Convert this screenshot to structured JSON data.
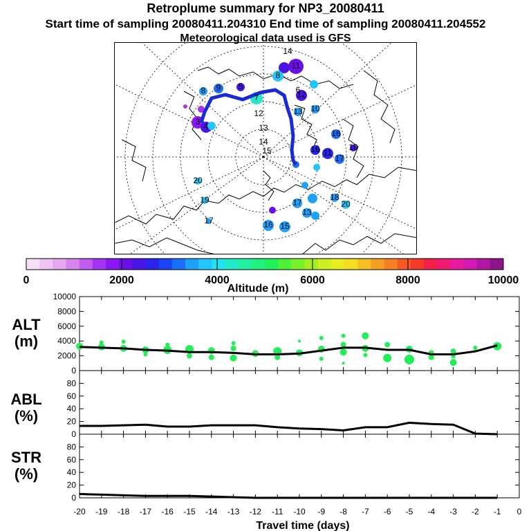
{
  "header": {
    "title": "Retroplume summary for NP3_20080411",
    "sampling_line": "Start time of sampling 20080411.204310     End time of sampling 20080411.204552",
    "met_line": "Meteorological data used is GFS"
  },
  "colors": {
    "track": "#1a2bd6",
    "alt_points": "#22ee55",
    "line": "#000000"
  },
  "colorbar": {
    "label": "Altitude (m)",
    "ticks": [
      "0",
      "2000",
      "4000",
      "6000",
      "8000",
      "10000"
    ],
    "colors": [
      "#f6e0f6",
      "#efc4f4",
      "#e6a6f0",
      "#d683ee",
      "#c25cf0",
      "#a633f2",
      "#8a18f0",
      "#6a10e6",
      "#4a14e6",
      "#2a24ee",
      "#1a44f4",
      "#1a70fa",
      "#1ea0fc",
      "#22c6fc",
      "#22e2ee",
      "#22ecc8",
      "#22eea2",
      "#22f080",
      "#22f25a",
      "#4cf23a",
      "#7af02a",
      "#a6ee22",
      "#ccee22",
      "#eaec22",
      "#f6dc22",
      "#f6c022",
      "#f6a022",
      "#f68022",
      "#f65a22",
      "#f63a2a",
      "#f2204a",
      "#f01c74",
      "#ea1aa0",
      "#d418b4",
      "#b018a4",
      "#8a1488"
    ]
  },
  "map_labels": [
    "14",
    "13",
    "14",
    "12",
    "15",
    "8",
    "11",
    "12",
    "7",
    "6",
    "11",
    "13",
    "10",
    "17",
    "16",
    "19",
    "16",
    "13",
    "20",
    "20",
    "19",
    "17",
    "16",
    "15",
    "17",
    "9",
    "8",
    "5",
    "4",
    "3",
    "18"
  ],
  "chart_data": [
    {
      "type": "scatter",
      "panel": "ALT",
      "ylabel": "ALT",
      "yunit": "(m)",
      "ylim": [
        0,
        10000
      ],
      "yticks": [
        "10000",
        "8000",
        "6000",
        "4000",
        "2000",
        "0"
      ],
      "x": [
        -20,
        -19,
        -18,
        -17,
        -16,
        -15,
        -14,
        -13,
        -12,
        -11,
        -10,
        -9,
        -8,
        -7,
        -6,
        -5,
        -4,
        -3,
        -2,
        -1
      ],
      "mean_altitude": [
        3200,
        3100,
        3000,
        2800,
        2700,
        2500,
        2500,
        2400,
        2200,
        2200,
        2300,
        2700,
        3100,
        3100,
        2800,
        2800,
        2200,
        2200,
        2600,
        3400
      ],
      "points": [
        {
          "x": -20,
          "y": 3300,
          "s": 5
        },
        {
          "x": -19,
          "y": 3200,
          "s": 5
        },
        {
          "x": -19,
          "y": 3800,
          "s": 3
        },
        {
          "x": -18,
          "y": 3000,
          "s": 5
        },
        {
          "x": -18,
          "y": 3900,
          "s": 3
        },
        {
          "x": -17,
          "y": 2800,
          "s": 5
        },
        {
          "x": -17,
          "y": 2200,
          "s": 3
        },
        {
          "x": -16,
          "y": 2800,
          "s": 6
        },
        {
          "x": -16,
          "y": 3500,
          "s": 3
        },
        {
          "x": -15,
          "y": 2900,
          "s": 6
        },
        {
          "x": -15,
          "y": 2000,
          "s": 4
        },
        {
          "x": -14,
          "y": 2700,
          "s": 5
        },
        {
          "x": -14,
          "y": 1800,
          "s": 4
        },
        {
          "x": -13,
          "y": 3000,
          "s": 4
        },
        {
          "x": -13,
          "y": 1700,
          "s": 5
        },
        {
          "x": -13,
          "y": 3700,
          "s": 3
        },
        {
          "x": -12,
          "y": 2300,
          "s": 5
        },
        {
          "x": -11,
          "y": 2600,
          "s": 6
        },
        {
          "x": -11,
          "y": 1800,
          "s": 4
        },
        {
          "x": -10,
          "y": 2400,
          "s": 5
        },
        {
          "x": -10,
          "y": 4000,
          "s": 2
        },
        {
          "x": -9,
          "y": 2900,
          "s": 5
        },
        {
          "x": -9,
          "y": 4400,
          "s": 3
        },
        {
          "x": -9,
          "y": 1600,
          "s": 3
        },
        {
          "x": -8,
          "y": 3500,
          "s": 4
        },
        {
          "x": -8,
          "y": 2500,
          "s": 5
        },
        {
          "x": -8,
          "y": 4700,
          "s": 3
        },
        {
          "x": -8,
          "y": 1000,
          "s": 2
        },
        {
          "x": -7,
          "y": 4700,
          "s": 5
        },
        {
          "x": -7,
          "y": 3000,
          "s": 5
        },
        {
          "x": -7,
          "y": 2100,
          "s": 3
        },
        {
          "x": -6,
          "y": 3500,
          "s": 4
        },
        {
          "x": -6,
          "y": 1700,
          "s": 6
        },
        {
          "x": -5,
          "y": 2900,
          "s": 5
        },
        {
          "x": -5,
          "y": 1500,
          "s": 7
        },
        {
          "x": -4,
          "y": 2400,
          "s": 4
        },
        {
          "x": -4,
          "y": 1800,
          "s": 4
        },
        {
          "x": -3,
          "y": 2600,
          "s": 4
        },
        {
          "x": -3,
          "y": 1100,
          "s": 5
        },
        {
          "x": -3,
          "y": 1900,
          "s": 3
        },
        {
          "x": -2,
          "y": 3100,
          "s": 3
        },
        {
          "x": -2,
          "y": 2700,
          "s": 2
        },
        {
          "x": -1,
          "y": 3300,
          "s": 6
        }
      ]
    },
    {
      "type": "line",
      "panel": "ABL",
      "ylabel": "ABL",
      "yunit": "(%)",
      "ylim": [
        0,
        100
      ],
      "yticks": [
        "80",
        "60",
        "40",
        "20",
        "0"
      ],
      "x": [
        -20,
        -19,
        -18,
        -17,
        -16,
        -15,
        -14,
        -13,
        -12,
        -11,
        -10,
        -9,
        -8,
        -7,
        -6,
        -5,
        -4,
        -3,
        -2,
        -1
      ],
      "values": [
        13,
        13,
        14,
        15,
        12,
        12,
        14,
        14,
        14,
        11,
        9,
        8,
        6,
        11,
        11,
        18,
        16,
        15,
        1,
        0
      ]
    },
    {
      "type": "line",
      "panel": "STR",
      "ylabel": "STR",
      "yunit": "(%)",
      "ylim": [
        0,
        100
      ],
      "yticks": [
        "80",
        "60",
        "40",
        "20",
        "0"
      ],
      "x": [
        -20,
        -19,
        -18,
        -17,
        -16,
        -15,
        -14,
        -13,
        -12,
        -11,
        -10,
        -9,
        -8,
        -7,
        -6,
        -5,
        -4,
        -3,
        -2,
        -1
      ],
      "values": [
        6,
        5,
        4,
        3,
        3,
        3,
        2,
        1,
        0,
        0,
        0,
        0,
        0,
        0,
        0,
        0,
        0,
        0,
        0,
        0
      ]
    }
  ],
  "xaxis": {
    "label": "Travel time (days)",
    "ticks": [
      "-20",
      "-19",
      "-18",
      "-17",
      "-16",
      "-15",
      "-14",
      "-13",
      "-12",
      "-11",
      "-10",
      "-9",
      "-8",
      "-7",
      "-6",
      "-5",
      "-4",
      "-3",
      "-2",
      "-1",
      "0"
    ]
  }
}
